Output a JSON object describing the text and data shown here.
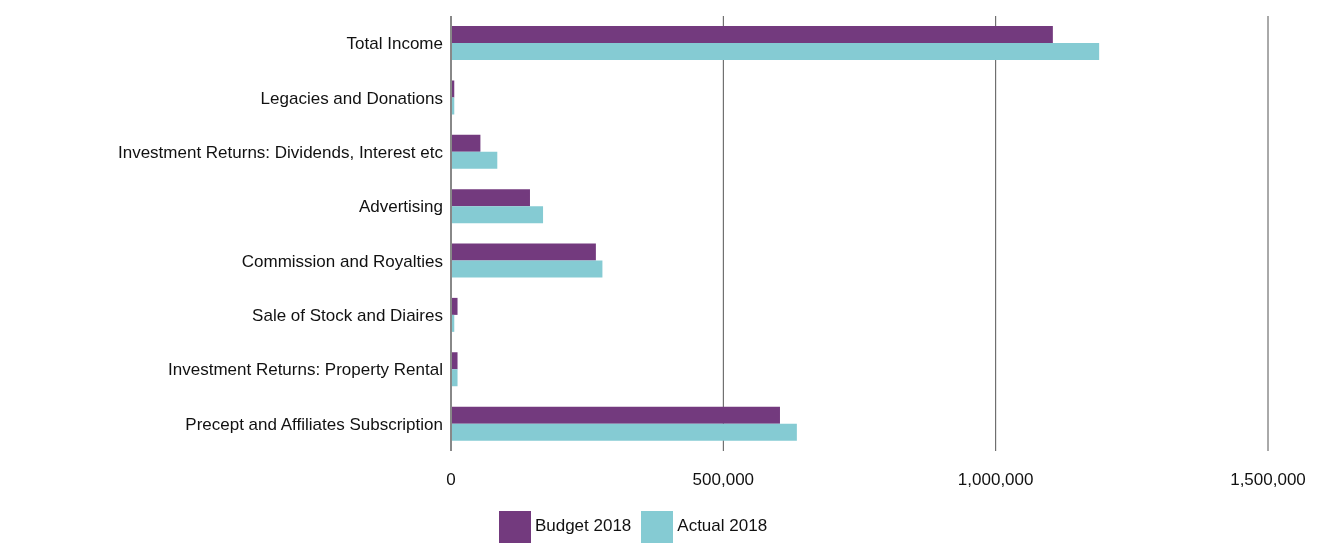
{
  "chart_data": {
    "type": "bar",
    "orientation": "horizontal",
    "categories": [
      "Total Income",
      "Legacies and Donations",
      "Investment Returns: Dividends, Interest etc",
      "Advertising",
      "Commission and Royalties",
      "Sale of Stock and Diaires",
      "Investment Returns: Property Rental",
      "Precept and Affiliates Subscription"
    ],
    "series": [
      {
        "name": "Budget 2018",
        "color": "#733a7e",
        "values": [
          1105000,
          6000,
          54000,
          145000,
          266000,
          12000,
          12000,
          604000
        ]
      },
      {
        "name": "Actual 2018",
        "color": "#85cbd3",
        "values": [
          1190000,
          6000,
          85000,
          169000,
          278000,
          6000,
          12000,
          635000
        ]
      }
    ],
    "xlim": [
      0,
      1500000
    ],
    "xticks": [
      {
        "value": 0,
        "label": "0"
      },
      {
        "value": 500000,
        "label": "500,000"
      },
      {
        "value": 1000000,
        "label": "1,000,000"
      },
      {
        "value": 1500000,
        "label": "1,500,000"
      }
    ],
    "grid": "x",
    "legend": "bottom"
  }
}
